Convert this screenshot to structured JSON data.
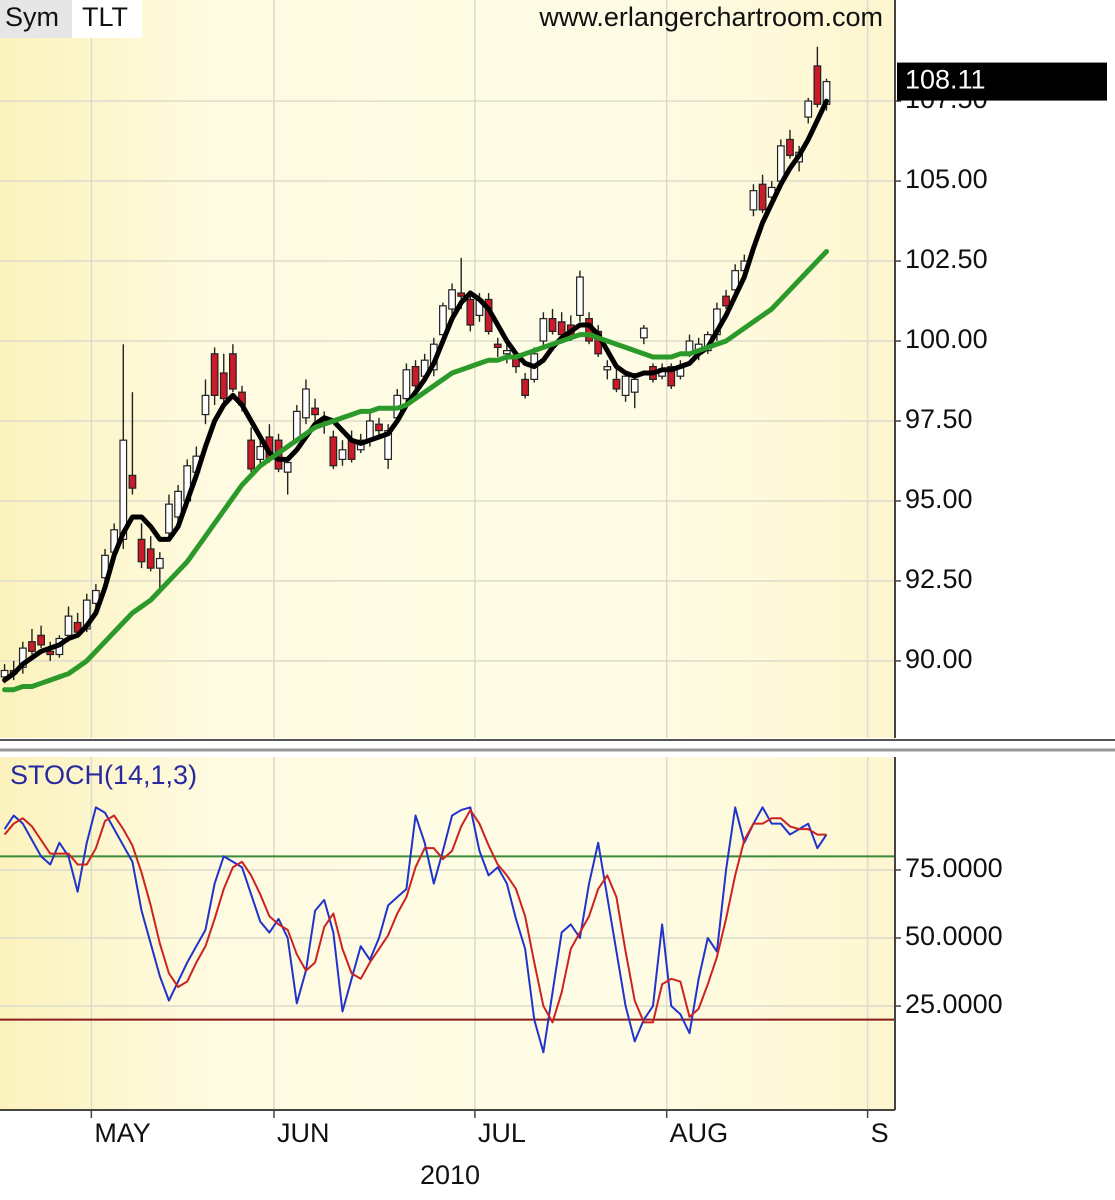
{
  "chart_data": [
    {
      "type": "candlestick",
      "symbol_label": "Sym",
      "symbol": "TLT",
      "source": "www.erlangerchartroom.com",
      "up_color": "#ffffff",
      "down_color": "#cc1a2a",
      "open": [
        89.5,
        89.7,
        89.8,
        90.6,
        90.8,
        90.3,
        90.2,
        90.8,
        91.2,
        91.0,
        91.8,
        92.6,
        93.4,
        93.8,
        95.8,
        93.8,
        93.5,
        92.9,
        94.0,
        94.5,
        95.0,
        95.9,
        97.7,
        99.6,
        99.0,
        99.6,
        98.4,
        96.9,
        96.3,
        97.0,
        96.9,
        95.9,
        96.9,
        97.6,
        97.9,
        97.6,
        97.0,
        96.3,
        96.9,
        96.6,
        96.9,
        97.4,
        96.3,
        97.6,
        98.2,
        99.2,
        98.9,
        99.1,
        100.2,
        101.0,
        101.5,
        101.3,
        100.8,
        101.3,
        99.9,
        99.6,
        99.5,
        98.8,
        98.8,
        100.0,
        100.7,
        100.6,
        100.5,
        100.8,
        100.7,
        100.3,
        99.1,
        98.8,
        98.3,
        98.4,
        100.1,
        99.2,
        98.9,
        99.2,
        98.9,
        99.6,
        99.7,
        99.7,
        100.2,
        101.4,
        101.6,
        102.2,
        104.1,
        104.9,
        104.5,
        105.0,
        106.3,
        105.6,
        107.0,
        108.6,
        107.4,
        null,
        null,
        null,
        null,
        null,
        null,
        null
      ],
      "high": [
        89.9,
        90.0,
        90.6,
        91.0,
        91.1,
        90.6,
        90.8,
        91.7,
        91.5,
        92.1,
        92.4,
        93.5,
        94.3,
        99.9,
        98.4,
        94.3,
        93.9,
        93.4,
        95.2,
        95.5,
        96.3,
        96.7,
        98.8,
        99.8,
        99.6,
        99.9,
        98.6,
        97.3,
        96.9,
        97.4,
        97.1,
        96.4,
        98.0,
        98.8,
        98.2,
        97.8,
        97.2,
        96.9,
        97.2,
        97.1,
        97.8,
        97.6,
        97.4,
        98.5,
        99.3,
        99.4,
        99.6,
        100.1,
        101.2,
        101.8,
        102.6,
        101.5,
        101.5,
        101.5,
        100.1,
        100.0,
        99.7,
        99.0,
        99.8,
        100.9,
        101.0,
        100.9,
        100.8,
        102.2,
        100.9,
        100.5,
        99.4,
        99.2,
        99.0,
        99.0,
        100.5,
        99.3,
        99.3,
        99.3,
        99.4,
        100.2,
        100.1,
        100.3,
        101.2,
        101.6,
        102.4,
        102.7,
        104.9,
        105.2,
        105.0,
        106.3,
        106.6,
        106.1,
        107.6,
        109.2,
        108.2,
        null,
        null,
        null,
        null,
        null,
        null,
        null
      ],
      "low": [
        89.3,
        89.4,
        89.6,
        90.2,
        90.4,
        90.0,
        90.1,
        90.6,
        90.8,
        90.9,
        91.5,
        92.4,
        93.2,
        93.5,
        95.2,
        92.9,
        92.8,
        92.2,
        93.8,
        94.3,
        94.8,
        95.7,
        97.4,
        98.0,
        98.1,
        98.4,
        97.8,
        95.9,
        96.1,
        96.2,
        95.9,
        95.2,
        96.8,
        97.4,
        97.4,
        97.1,
        96.0,
        96.1,
        96.2,
        96.5,
        96.7,
        97.0,
        96.0,
        97.5,
        98.0,
        98.4,
        98.7,
        98.9,
        100.0,
        100.8,
        101.0,
        100.3,
        100.6,
        100.2,
        99.5,
        99.3,
        99.0,
        98.2,
        98.7,
        99.8,
        100.2,
        100.1,
        100.0,
        100.6,
        99.9,
        99.5,
        98.8,
        98.4,
        98.1,
        97.9,
        99.9,
        98.7,
        98.8,
        98.5,
        98.8,
        99.5,
        99.4,
        99.6,
        100.0,
        101.0,
        101.4,
        101.9,
        103.9,
        104.0,
        104.3,
        104.8,
        105.7,
        105.3,
        106.8,
        107.3,
        107.2,
        null,
        null,
        null,
        null,
        null,
        null,
        null
      ],
      "close": [
        89.7,
        89.6,
        90.4,
        90.3,
        90.5,
        90.2,
        90.7,
        91.4,
        90.9,
        91.9,
        92.2,
        93.3,
        94.1,
        96.9,
        95.4,
        93.1,
        92.9,
        93.2,
        94.9,
        95.3,
        96.1,
        96.4,
        98.3,
        98.3,
        98.2,
        98.5,
        98.0,
        96.0,
        96.7,
        96.3,
        96.0,
        96.2,
        97.8,
        98.5,
        97.7,
        97.4,
        96.1,
        96.6,
        96.3,
        96.9,
        97.5,
        97.2,
        97.2,
        98.3,
        99.1,
        98.6,
        99.4,
        99.9,
        101.1,
        101.6,
        101.4,
        100.5,
        101.3,
        100.3,
        99.8,
        99.7,
        99.2,
        98.3,
        99.6,
        100.7,
        100.3,
        100.2,
        100.1,
        102.0,
        100.0,
        99.6,
        99.2,
        98.5,
        98.9,
        98.8,
        100.4,
        98.8,
        99.1,
        98.6,
        99.2,
        100.0,
        99.9,
        100.2,
        101.0,
        101.1,
        102.2,
        102.5,
        104.7,
        104.1,
        104.8,
        106.1,
        105.8,
        105.9,
        107.5,
        107.4,
        108.11,
        null,
        null,
        null,
        null,
        null,
        null,
        null
      ],
      "series": [
        {
          "color": "#000000",
          "values": [
            89.4,
            89.6,
            89.9,
            90.1,
            90.3,
            90.4,
            90.5,
            90.7,
            90.8,
            91.1,
            91.5,
            92.3,
            93.3,
            94.0,
            94.5,
            94.5,
            94.2,
            93.8,
            93.8,
            94.2,
            95.0,
            95.8,
            96.7,
            97.5,
            98.0,
            98.3,
            98.0,
            97.5,
            97.0,
            96.5,
            96.3,
            96.3,
            96.6,
            97.0,
            97.4,
            97.6,
            97.5,
            97.2,
            96.9,
            96.8,
            96.9,
            97.0,
            97.1,
            97.5,
            98.0,
            98.4,
            98.8,
            99.3,
            100.0,
            100.7,
            101.2,
            101.5,
            101.3,
            101.0,
            100.5,
            100.0,
            99.6,
            99.3,
            99.2,
            99.4,
            99.8,
            100.1,
            100.3,
            100.5,
            100.5,
            100.2,
            99.7,
            99.2,
            99.0,
            98.9,
            99.0,
            99.0,
            99.1,
            99.1,
            99.2,
            99.3,
            99.6,
            99.8,
            100.3,
            100.8,
            101.4,
            102.0,
            102.9,
            103.7,
            104.3,
            104.9,
            105.4,
            105.8,
            106.3,
            106.9,
            107.5,
            null,
            null,
            null,
            null,
            null,
            null,
            null
          ]
        },
        {
          "color": "#2b9a2b",
          "values": [
            89.1,
            89.1,
            89.2,
            89.2,
            89.3,
            89.4,
            89.5,
            89.6,
            89.8,
            90.0,
            90.3,
            90.6,
            90.9,
            91.2,
            91.5,
            91.7,
            91.9,
            92.2,
            92.5,
            92.8,
            93.1,
            93.5,
            93.9,
            94.3,
            94.7,
            95.1,
            95.5,
            95.8,
            96.1,
            96.3,
            96.5,
            96.7,
            96.9,
            97.1,
            97.3,
            97.4,
            97.5,
            97.6,
            97.7,
            97.8,
            97.8,
            97.9,
            97.9,
            97.9,
            98.0,
            98.2,
            98.4,
            98.6,
            98.8,
            99.0,
            99.1,
            99.2,
            99.3,
            99.4,
            99.4,
            99.5,
            99.5,
            99.6,
            99.7,
            99.8,
            99.9,
            100.0,
            100.1,
            100.2,
            100.2,
            100.1,
            100.0,
            99.9,
            99.8,
            99.7,
            99.6,
            99.5,
            99.5,
            99.5,
            99.6,
            99.6,
            99.7,
            99.8,
            99.9,
            100.0,
            100.2,
            100.4,
            100.6,
            100.8,
            101.0,
            101.3,
            101.6,
            101.9,
            102.2,
            102.5,
            102.8,
            null,
            null,
            null,
            null,
            null,
            null,
            null
          ]
        }
      ],
      "ylim": [
        87.59,
        110.66
      ],
      "yticks": [
        {
          "value": 90,
          "label": "90.00"
        },
        {
          "value": 92.5,
          "label": "92.50"
        },
        {
          "value": 95,
          "label": "95.00"
        },
        {
          "value": 97.5,
          "label": "97.50"
        },
        {
          "value": 100,
          "label": "100.00"
        },
        {
          "value": 102.5,
          "label": "102.50"
        },
        {
          "value": 105,
          "label": "105.00"
        },
        {
          "value": 107.5,
          "label": "107.50"
        }
      ],
      "grid": true
    },
    {
      "type": "line",
      "title": "STOCH(14,1,3)",
      "xlabel": "2010",
      "categories": [
        null,
        null,
        null,
        null,
        null,
        null,
        null,
        null,
        null,
        null,
        "MAY",
        null,
        null,
        null,
        null,
        null,
        null,
        null,
        null,
        null,
        null,
        null,
        null,
        null,
        null,
        null,
        null,
        null,
        null,
        null,
        "JUN",
        null,
        null,
        null,
        null,
        null,
        null,
        null,
        null,
        null,
        null,
        null,
        null,
        null,
        null,
        null,
        null,
        null,
        null,
        null,
        null,
        null,
        "JUL",
        null,
        null,
        null,
        null,
        null,
        null,
        null,
        null,
        null,
        null,
        null,
        null,
        null,
        null,
        null,
        null,
        null,
        null,
        null,
        null,
        "AUG",
        null,
        null,
        null,
        null,
        null,
        null,
        null,
        null,
        null,
        null,
        null,
        null,
        null,
        null,
        null,
        null,
        null,
        null,
        null,
        null,
        null,
        "S",
        null,
        null
      ],
      "series": [
        {
          "color": "#2233cc",
          "values": [
            90,
            95,
            92,
            86,
            80,
            77,
            85,
            80,
            67,
            85,
            98,
            96,
            90,
            84,
            78,
            60,
            48,
            36,
            27,
            34,
            41,
            47,
            53,
            70,
            80,
            78,
            76,
            66,
            56,
            52,
            57,
            50,
            26,
            38,
            60,
            64,
            52,
            23,
            35,
            47,
            42,
            50,
            62,
            65,
            68,
            95,
            85,
            70,
            82,
            95,
            97,
            98,
            82,
            73,
            76,
            70,
            57,
            46,
            20,
            8,
            30,
            52,
            55,
            50,
            70,
            85,
            65,
            45,
            25,
            12,
            20,
            25,
            55,
            25,
            22,
            15,
            35,
            50,
            45,
            75,
            98,
            85,
            92,
            98,
            92,
            92,
            88,
            90,
            92,
            83,
            88,
            null,
            null,
            null,
            null,
            null,
            null,
            null
          ]
        },
        {
          "color": "#cc2222",
          "values": [
            88,
            92,
            94,
            91,
            86,
            81,
            81,
            81,
            77,
            77,
            83,
            93,
            95,
            90,
            84,
            74,
            62,
            48,
            37,
            32,
            34,
            41,
            47,
            57,
            68,
            76,
            78,
            73,
            66,
            58,
            55,
            53,
            44,
            38,
            41,
            54,
            59,
            46,
            37,
            35,
            41,
            46,
            51,
            59,
            65,
            76,
            83,
            83,
            79,
            82,
            91,
            97,
            92,
            84,
            77,
            73,
            68,
            58,
            41,
            25,
            19,
            30,
            46,
            52,
            58,
            68,
            73,
            65,
            45,
            27,
            19,
            19,
            33,
            35,
            34,
            21,
            24,
            33,
            43,
            57,
            73,
            86,
            92,
            92,
            94,
            94,
            91,
            90,
            90,
            88,
            88,
            null,
            null,
            null,
            null,
            null,
            null,
            null
          ]
        }
      ],
      "hlines": [
        {
          "value": 80,
          "color": "#3a8a3a"
        },
        {
          "value": 20,
          "color": "#8b1a1a"
        }
      ],
      "ylim": [
        -13.2,
        116.5
      ],
      "yticks": [
        {
          "value": 25,
          "label": "25.0000"
        },
        {
          "value": 50,
          "label": "50.0000"
        },
        {
          "value": 75,
          "label": "75.0000"
        }
      ],
      "grid": true
    }
  ]
}
